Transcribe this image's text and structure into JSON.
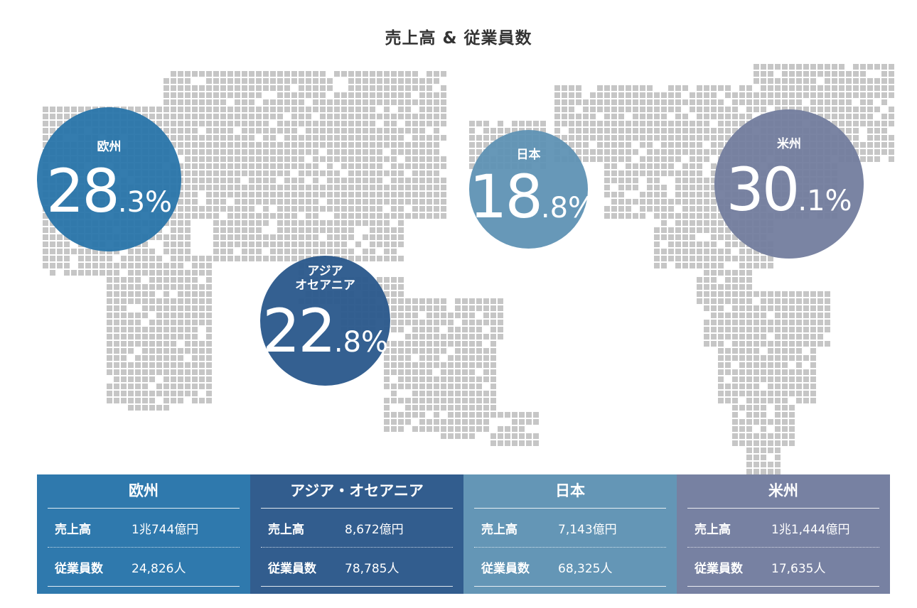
{
  "title": "売上高 & 従業員数",
  "colors": {
    "europe": "#2f79ad",
    "asia": "#325d8e",
    "japan": "#6496b6",
    "americas": "#7781a2",
    "map_dot": "#c6c6c6"
  },
  "bubbles": [
    {
      "id": "europe",
      "label": "欧州",
      "pct_int": "28",
      "pct_dec": ".3%"
    },
    {
      "id": "asia",
      "label": "アジア\nオセアニア",
      "pct_int": "22",
      "pct_dec": ".8%"
    },
    {
      "id": "japan",
      "label": "日本",
      "pct_int": "18",
      "pct_dec": ".8%"
    },
    {
      "id": "americas",
      "label": "米州",
      "pct_int": "30",
      "pct_dec": ".1%"
    }
  ],
  "table": {
    "row_labels": {
      "sales": "売上高",
      "employees": "従業員数"
    },
    "regions": [
      {
        "name": "欧州",
        "sales": "1兆744億円",
        "employees": "24,826人"
      },
      {
        "name": "アジア・オセアニア",
        "sales": "8,672億円",
        "employees": "78,785人"
      },
      {
        "name": "日本",
        "sales": "7,143億円",
        "employees": "68,325人"
      },
      {
        "name": "米州",
        "sales": "1兆1,444億円",
        "employees": "17,635人"
      }
    ]
  }
}
